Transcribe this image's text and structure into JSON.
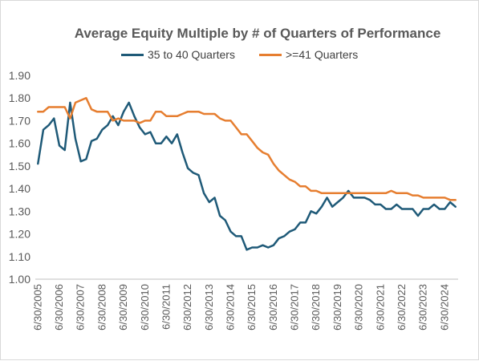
{
  "chart_data": {
    "type": "line",
    "title": "Average Equity Multiple by # of Quarters of Performance",
    "xlabel": "",
    "ylabel": "",
    "ylim": [
      1.0,
      1.9
    ],
    "yticks": [
      "1.00",
      "1.10",
      "1.20",
      "1.30",
      "1.40",
      "1.50",
      "1.60",
      "1.70",
      "1.80",
      "1.90"
    ],
    "grid": false,
    "legend_position": "top",
    "x_tick_labels": [
      "6/30/2005",
      "6/30/2006",
      "6/30/2007",
      "6/30/2008",
      "6/30/2009",
      "6/30/2010",
      "6/30/2011",
      "6/30/2012",
      "6/30/2013",
      "6/30/2014",
      "6/30/2015",
      "6/30/2016",
      "6/30/2017",
      "6/30/2018",
      "6/30/2019",
      "6/30/2020",
      "6/30/2021",
      "6/30/2022",
      "6/30/2023",
      "6/30/2024"
    ],
    "x": [
      "6/30/2005",
      "9/30/2005",
      "12/31/2005",
      "3/31/2006",
      "6/30/2006",
      "9/30/2006",
      "12/31/2006",
      "3/31/2007",
      "6/30/2007",
      "9/30/2007",
      "12/31/2007",
      "3/31/2008",
      "6/30/2008",
      "9/30/2008",
      "12/31/2008",
      "3/31/2009",
      "6/30/2009",
      "9/30/2009",
      "12/31/2009",
      "3/31/2010",
      "6/30/2010",
      "9/30/2010",
      "12/31/2010",
      "3/31/2011",
      "6/30/2011",
      "9/30/2011",
      "12/31/2011",
      "3/31/2012",
      "6/30/2012",
      "9/30/2012",
      "12/31/2012",
      "3/31/2013",
      "6/30/2013",
      "9/30/2013",
      "12/31/2013",
      "3/31/2014",
      "6/30/2014",
      "9/30/2014",
      "12/31/2014",
      "3/31/2015",
      "6/30/2015",
      "9/30/2015",
      "12/31/2015",
      "3/31/2016",
      "6/30/2016",
      "9/30/2016",
      "12/31/2016",
      "3/31/2017",
      "6/30/2017",
      "9/30/2017",
      "12/31/2017",
      "3/31/2018",
      "6/30/2018",
      "9/30/2018",
      "12/31/2018",
      "3/31/2019",
      "6/30/2019",
      "9/30/2019",
      "12/31/2019",
      "3/31/2020",
      "6/30/2020",
      "9/30/2020",
      "12/31/2020",
      "3/31/2021",
      "6/30/2021",
      "9/30/2021",
      "12/31/2021",
      "3/31/2022",
      "6/30/2022",
      "9/30/2022",
      "12/31/2022",
      "3/31/2023",
      "6/30/2023",
      "9/30/2023",
      "12/31/2023",
      "3/31/2024",
      "6/30/2024",
      "9/30/2024",
      "12/31/2024"
    ],
    "series": [
      {
        "name": "35 to 40 Quarters",
        "color": "#1f5a78",
        "values": [
          1.51,
          1.66,
          1.68,
          1.71,
          1.59,
          1.57,
          1.78,
          1.62,
          1.52,
          1.53,
          1.61,
          1.62,
          1.66,
          1.68,
          1.72,
          1.68,
          1.74,
          1.78,
          1.72,
          1.67,
          1.64,
          1.65,
          1.6,
          1.6,
          1.63,
          1.6,
          1.64,
          1.56,
          1.49,
          1.47,
          1.46,
          1.38,
          1.34,
          1.36,
          1.28,
          1.26,
          1.21,
          1.19,
          1.19,
          1.13,
          1.14,
          1.14,
          1.15,
          1.14,
          1.15,
          1.18,
          1.19,
          1.21,
          1.22,
          1.25,
          1.25,
          1.3,
          1.29,
          1.32,
          1.36,
          1.32,
          1.34,
          1.36,
          1.39,
          1.36,
          1.36,
          1.36,
          1.35,
          1.33,
          1.33,
          1.31,
          1.31,
          1.33,
          1.31,
          1.31,
          1.31,
          1.28,
          1.31,
          1.31,
          1.33,
          1.31,
          1.31,
          1.34,
          1.32
        ]
      },
      {
        "name": ">=41 Quarters",
        "color": "#e67e30",
        "values": [
          1.74,
          1.74,
          1.76,
          1.76,
          1.76,
          1.76,
          1.71,
          1.78,
          1.79,
          1.8,
          1.75,
          1.74,
          1.74,
          1.74,
          1.7,
          1.71,
          1.7,
          1.7,
          1.7,
          1.69,
          1.7,
          1.7,
          1.74,
          1.74,
          1.72,
          1.72,
          1.72,
          1.73,
          1.74,
          1.74,
          1.74,
          1.73,
          1.73,
          1.73,
          1.71,
          1.7,
          1.7,
          1.67,
          1.64,
          1.64,
          1.61,
          1.58,
          1.56,
          1.55,
          1.51,
          1.48,
          1.46,
          1.44,
          1.43,
          1.41,
          1.41,
          1.39,
          1.39,
          1.38,
          1.38,
          1.38,
          1.38,
          1.38,
          1.38,
          1.38,
          1.38,
          1.38,
          1.38,
          1.38,
          1.38,
          1.38,
          1.39,
          1.38,
          1.38,
          1.38,
          1.37,
          1.37,
          1.36,
          1.36,
          1.36,
          1.36,
          1.36,
          1.35,
          1.35
        ]
      }
    ]
  }
}
